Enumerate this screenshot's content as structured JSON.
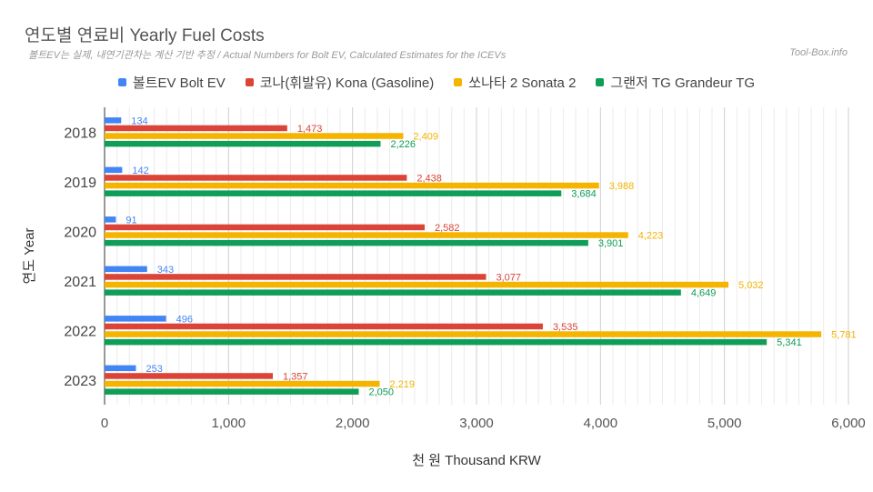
{
  "chart_data": {
    "type": "bar",
    "orientation": "horizontal",
    "title": "연도별 연료비 Yearly Fuel Costs",
    "subtitle": "볼트EV는 실제, 내연기관차는 계산 기반 추정 / Actual Numbers for Bolt EV, Calculated Estimates for the ICEVs",
    "credit": "Tool-Box.info",
    "xlabel": "천 원 Thousand KRW",
    "ylabel": "연도 Year",
    "xlim": [
      0,
      6000
    ],
    "x_ticks": [
      "0",
      "1,000",
      "2,000",
      "3,000",
      "4,000",
      "5,000",
      "6,000"
    ],
    "x_tick_values": [
      0,
      1000,
      2000,
      3000,
      4000,
      5000,
      6000
    ],
    "grid": true,
    "legend_position": "top",
    "categories": [
      "2018",
      "2019",
      "2020",
      "2021",
      "2022",
      "2023"
    ],
    "series": [
      {
        "name": "볼트EV Bolt EV",
        "color": "#4285f4",
        "values": [
          134,
          142,
          91,
          343,
          496,
          253
        ],
        "labels": [
          "134",
          "142",
          "91",
          "343",
          "496",
          "253"
        ]
      },
      {
        "name": "코나(휘발유) Kona (Gasoline)",
        "color": "#db4437",
        "values": [
          1473,
          2438,
          2582,
          3077,
          3535,
          1357
        ],
        "labels": [
          "1,473",
          "2,438",
          "2,582",
          "3,077",
          "3,535",
          "1,357"
        ]
      },
      {
        "name": "쏘나타 2 Sonata 2",
        "color": "#f4b400",
        "values": [
          2409,
          3988,
          4223,
          5032,
          5781,
          2219
        ],
        "labels": [
          "2,409",
          "3,988",
          "4,223",
          "5,032",
          "5,781",
          "2,219"
        ]
      },
      {
        "name": "그랜저 TG Grandeur TG",
        "color": "#0f9d58",
        "values": [
          2226,
          3684,
          3901,
          4649,
          5341,
          2050
        ],
        "labels": [
          "2,226",
          "3,684",
          "3,901",
          "4,649",
          "5,341",
          "2,050"
        ]
      }
    ]
  }
}
